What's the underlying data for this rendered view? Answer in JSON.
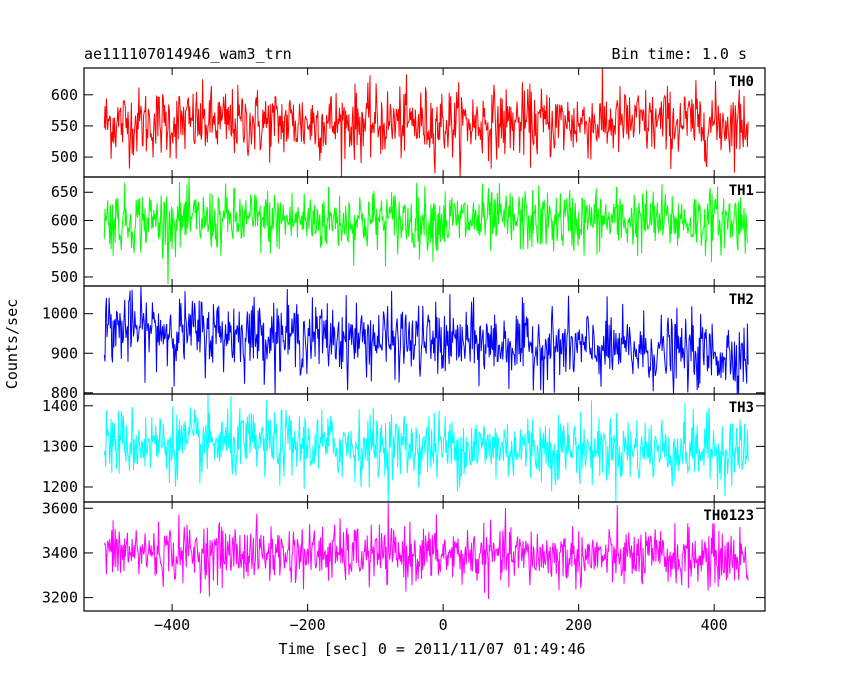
{
  "chart_data": {
    "type": "line",
    "title_left": "ae111107014946_wam3_trn",
    "title_right": "Bin time: 1.0 s",
    "xlabel": "Time [sec] 0 = 2011/11/07 01:49:46",
    "ylabel": "Counts/sec",
    "x_range": [
      -500,
      450
    ],
    "xlim": [
      -530,
      475
    ],
    "x_ticks": [
      -400,
      -200,
      0,
      200,
      400
    ],
    "x_tick_labels": [
      "−400",
      "−200",
      "0",
      "200",
      "400"
    ],
    "panels": [
      {
        "name": "TH0",
        "color": "#ff0000",
        "ylim": [
          468,
          643
        ],
        "mean": 555,
        "amp": 28,
        "y_ticks": [
          500,
          550,
          600
        ],
        "y_tick_labels": [
          "500",
          "550",
          "600"
        ]
      },
      {
        "name": "TH1",
        "color": "#00ff00",
        "ylim": [
          484,
          677
        ],
        "mean": 600,
        "amp": 28,
        "y_ticks": [
          500,
          550,
          600,
          650
        ],
        "y_tick_labels": [
          "500",
          "550",
          "600",
          "650"
        ]
      },
      {
        "name": "TH2",
        "color": "#0000ff",
        "ylim": [
          797,
          1070
        ],
        "mean": 930,
        "amp": 45,
        "trend": -70,
        "y_ticks": [
          800,
          900,
          1000
        ],
        "y_tick_labels": [
          "800",
          "900",
          "1000"
        ]
      },
      {
        "name": "TH3",
        "color": "#00ffff",
        "ylim": [
          1163,
          1429
        ],
        "mean": 1300,
        "amp": 42,
        "trend": -20,
        "y_ticks": [
          1200,
          1300,
          1400
        ],
        "y_tick_labels": [
          "1200",
          "1300",
          "1400"
        ]
      },
      {
        "name": "TH0123",
        "color": "#ff00ff",
        "ylim": [
          3140,
          3628
        ],
        "mean": 3390,
        "amp": 65,
        "trend": -30,
        "y_ticks": [
          3200,
          3400,
          3600
        ],
        "y_tick_labels": [
          "3200",
          "3400",
          "3600"
        ]
      }
    ]
  }
}
